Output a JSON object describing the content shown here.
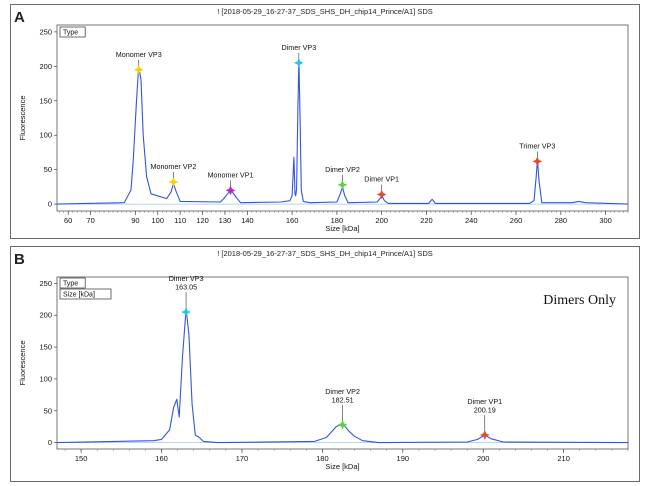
{
  "panels": [
    {
      "letter": "A",
      "title": "! [2018-05-29_16-27-37_SDS_SHS_DH_chip14_Prince/A1] SDS"
    },
    {
      "letter": "B",
      "title": "! [2018-05-29_16-27-37_SDS_SHS_DH_chip14_Prince/A1] SDS"
    }
  ],
  "chart_data": [
    {
      "type": "line",
      "title": "! [2018-05-29_16-27-37_SDS_SHS_DH_chip14_Prince/A1] SDS",
      "xlabel": "Size [kDa]",
      "ylabel": "Fluorescence",
      "xlim": [
        55,
        310
      ],
      "ylim": [
        -10,
        260
      ],
      "x_ticks": [
        60,
        70,
        90,
        100,
        110,
        120,
        130,
        140,
        160,
        180,
        200,
        220,
        240,
        260,
        280,
        300
      ],
      "y_ticks": [
        0,
        50,
        100,
        150,
        200,
        250
      ],
      "legend_boxes": [
        "Type"
      ],
      "series": [
        {
          "color": "#3355dd",
          "x": [
            55,
            85,
            86,
            88,
            89,
            90.5,
            91.5,
            92.5,
            93.5,
            95,
            97,
            104,
            106,
            107,
            108,
            110,
            128,
            130,
            132,
            133,
            135,
            137,
            155,
            159,
            160,
            160.8,
            161.3,
            161.6,
            162,
            162.6,
            163.05,
            163.5,
            164.1,
            165,
            168,
            180,
            181.5,
            182.51,
            183.5,
            185,
            198,
            199.2,
            200.19,
            201.2,
            203,
            221,
            222.5,
            224,
            266,
            268,
            269,
            269.6,
            270.2,
            271.5,
            285,
            288,
            291,
            310
          ],
          "y": [
            0,
            2,
            8,
            20,
            60,
            150,
            200,
            180,
            100,
            40,
            15,
            8,
            18,
            30,
            20,
            4,
            3,
            10,
            18,
            19,
            10,
            2,
            3,
            5,
            12,
            68,
            15,
            12,
            22,
            140,
            210,
            130,
            20,
            4,
            2,
            3,
            15,
            25,
            12,
            2,
            3,
            8,
            12,
            5,
            1,
            1,
            7,
            1,
            1,
            5,
            40,
            65,
            35,
            2,
            2,
            4,
            2,
            0
          ]
        }
      ],
      "annotations": [
        {
          "label": "Monomer VP3",
          "x": 91.5,
          "y": 195,
          "color": "#f5d300"
        },
        {
          "label": "Monomer VP2",
          "x": 107,
          "y": 32,
          "color": "#f5d300"
        },
        {
          "label": "Monomer VP1",
          "x": 132.5,
          "y": 20,
          "color": "#c21fc2"
        },
        {
          "label": "Dimer VP3",
          "x": 163,
          "y": 205,
          "color": "#22c8e0"
        },
        {
          "label": "Dimer VP2",
          "x": 182.5,
          "y": 28,
          "color": "#5ad33a"
        },
        {
          "label": "Dimer VP1",
          "x": 200,
          "y": 14,
          "color": "#e04a2a"
        },
        {
          "label": "Trimer VP3",
          "x": 269.5,
          "y": 62,
          "color": "#e04a2a"
        }
      ]
    },
    {
      "type": "line",
      "title": "! [2018-05-29_16-27-37_SDS_SHS_DH_chip14_Prince/A1] SDS",
      "xlabel": "Size [kDa]",
      "ylabel": "Fluorescence",
      "xlim": [
        147,
        218
      ],
      "ylim": [
        -10,
        260
      ],
      "x_ticks": [
        150,
        160,
        170,
        180,
        190,
        200,
        210
      ],
      "y_ticks": [
        0,
        50,
        100,
        150,
        200,
        250
      ],
      "legend_boxes": [
        "Type",
        "Size [kDa]"
      ],
      "annotation_text": "Dimers Only",
      "series": [
        {
          "color": "#3355dd",
          "x": [
            147,
            159,
            160,
            161,
            161.5,
            161.9,
            162.2,
            162.6,
            163.05,
            163.4,
            163.8,
            164.2,
            164.7,
            165.2,
            167,
            179,
            180.5,
            181.7,
            182.51,
            183.3,
            184,
            185,
            187,
            198,
            199.3,
            200.19,
            201,
            202.5,
            218
          ],
          "y": [
            0,
            3,
            5,
            20,
            55,
            68,
            40,
            135,
            210,
            170,
            60,
            12,
            8,
            2,
            0,
            2,
            8,
            25,
            30,
            18,
            10,
            3,
            0,
            1,
            5,
            12,
            6,
            1,
            0
          ]
        }
      ],
      "annotations": [
        {
          "label": "Dimer VP3",
          "value": "163.05",
          "x": 163.05,
          "y": 205,
          "color": "#22c8e0"
        },
        {
          "label": "Dimer VP2",
          "value": "182.51",
          "x": 182.51,
          "y": 28,
          "color": "#5ad33a"
        },
        {
          "label": "Dimer VP1",
          "value": "200.19",
          "x": 200.19,
          "y": 12,
          "color": "#e04a2a"
        }
      ]
    }
  ]
}
